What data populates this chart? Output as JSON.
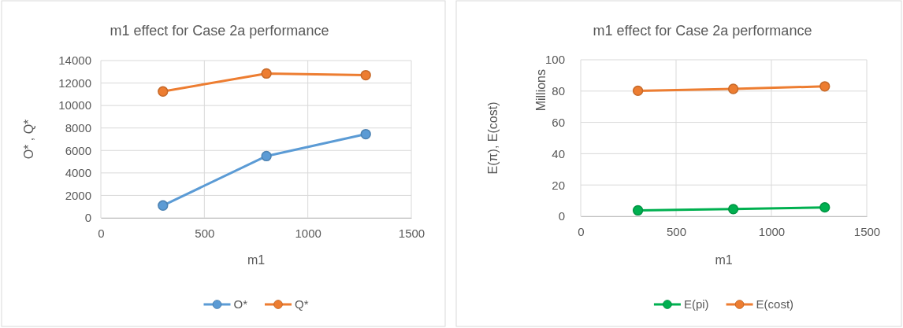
{
  "chart_data": [
    {
      "type": "line",
      "title": "m1 effect for Case 2a performance",
      "xlabel": "m1",
      "ylabel": "O* , Q*",
      "x": [
        300,
        800,
        1280
      ],
      "series": [
        {
          "name": "O*",
          "color": "#5b9bd5",
          "values": [
            1100,
            5500,
            7450
          ]
        },
        {
          "name": "Q*",
          "color": "#ed7d31",
          "values": [
            11250,
            12850,
            12700
          ]
        }
      ],
      "xlim": [
        0,
        1500
      ],
      "xticks": [
        0,
        500,
        1000,
        1500
      ],
      "ylim": [
        0,
        14000
      ],
      "yticks": [
        0,
        2000,
        4000,
        6000,
        8000,
        10000,
        12000,
        14000
      ],
      "grid": true,
      "legend": "bottom",
      "marker": "circle",
      "line_style": "solid"
    },
    {
      "type": "line",
      "title": "m1 effect for Case 2a performance",
      "xlabel": "m1",
      "ylabel": "E(π), E(cost)",
      "annotations": [
        "Millions"
      ],
      "x": [
        300,
        800,
        1280
      ],
      "series": [
        {
          "name": "E(pi)",
          "color": "#00b050",
          "values": [
            3.8,
            4.6,
            5.7
          ]
        },
        {
          "name": "E(cost)",
          "color": "#ed7d31",
          "values": [
            80.2,
            81.4,
            83.0
          ]
        }
      ],
      "xlim": [
        0,
        1500
      ],
      "xticks": [
        0,
        500,
        1000,
        1500
      ],
      "ylim": [
        0,
        100
      ],
      "yticks": [
        0,
        20,
        40,
        60,
        80,
        100
      ],
      "grid": true,
      "legend": "bottom",
      "marker": "circle",
      "line_style": "solid"
    }
  ]
}
